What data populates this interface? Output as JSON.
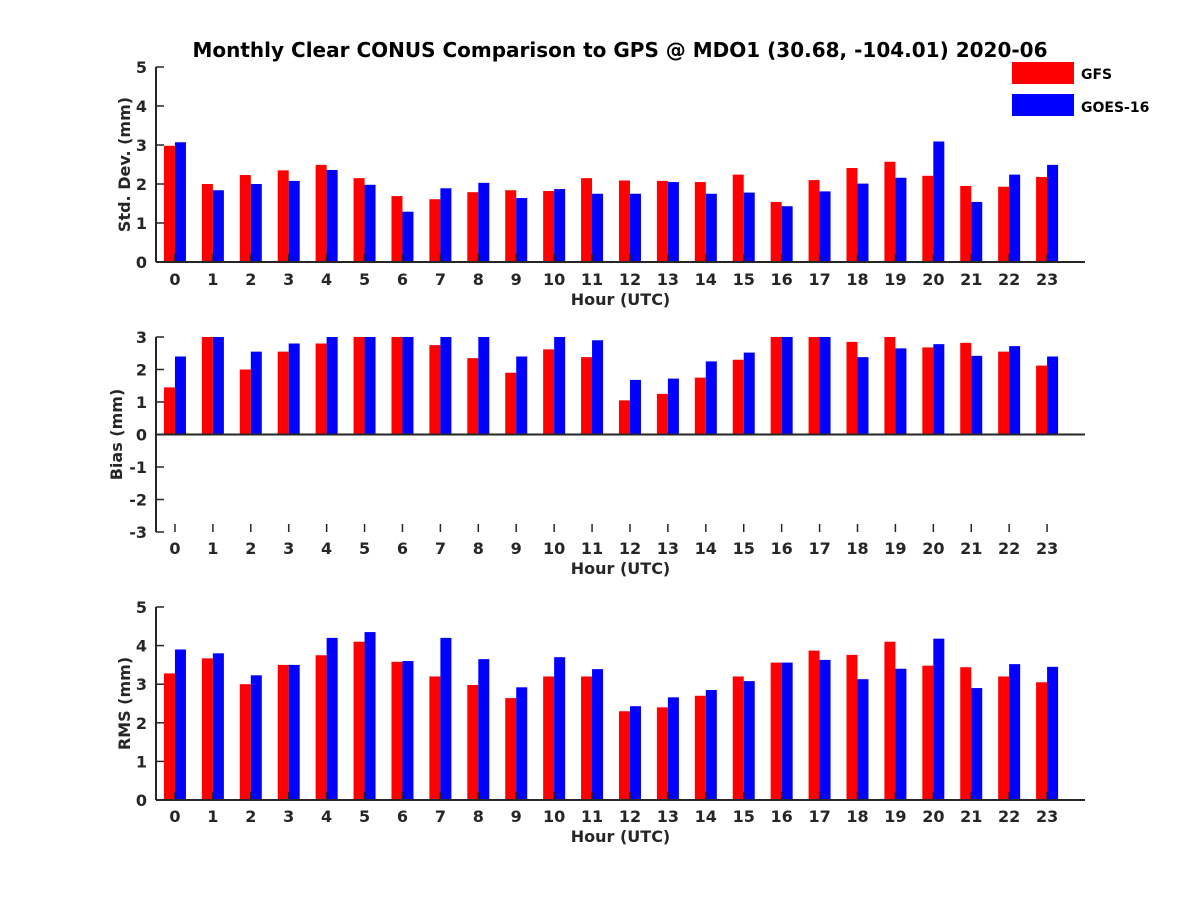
{
  "title": "Monthly Clear CONUS Comparison to GPS @ MDO1 (30.68, -104.01) 2020-06",
  "colors": {
    "GFS": "#ff0000",
    "GOES-16": "#0000ff",
    "axis": "#262626"
  },
  "legend": {
    "position": "top-right",
    "entries": [
      "GFS",
      "GOES-16"
    ]
  },
  "chart_data": [
    {
      "type": "bar",
      "ylabel": "Std. Dev. (mm)",
      "xlabel": "Hour (UTC)",
      "ylim": [
        0,
        5
      ],
      "yticks": [
        0,
        1,
        2,
        3,
        4,
        5
      ],
      "grid": false,
      "categories": [
        "0",
        "1",
        "2",
        "3",
        "4",
        "5",
        "6",
        "7",
        "8",
        "9",
        "10",
        "11",
        "12",
        "13",
        "14",
        "15",
        "16",
        "17",
        "18",
        "19",
        "20",
        "21",
        "22",
        "23"
      ],
      "series": [
        {
          "name": "GFS",
          "values": [
            2.98,
            2.0,
            2.23,
            2.35,
            2.49,
            2.15,
            1.69,
            1.61,
            1.79,
            1.84,
            1.82,
            2.15,
            2.09,
            2.08,
            2.05,
            2.24,
            1.54,
            2.1,
            2.41,
            2.57,
            2.21,
            1.95,
            1.93,
            2.18
          ]
        },
        {
          "name": "GOES-16",
          "values": [
            3.07,
            1.84,
            2.0,
            2.08,
            2.36,
            1.98,
            1.29,
            1.89,
            2.03,
            1.64,
            1.87,
            1.75,
            1.75,
            2.05,
            1.75,
            1.78,
            1.43,
            1.81,
            2.01,
            2.16,
            3.09,
            1.54,
            2.24,
            2.49
          ]
        }
      ]
    },
    {
      "type": "bar",
      "ylabel": "Bias (mm)",
      "xlabel": "Hour (UTC)",
      "ylim": [
        -3,
        3
      ],
      "yticks": [
        -3,
        -2,
        -1,
        0,
        1,
        2,
        3
      ],
      "grid": false,
      "categories": [
        "0",
        "1",
        "2",
        "3",
        "4",
        "5",
        "6",
        "7",
        "8",
        "9",
        "10",
        "11",
        "12",
        "13",
        "14",
        "15",
        "16",
        "17",
        "18",
        "19",
        "20",
        "21",
        "22",
        "23"
      ],
      "series": [
        {
          "name": "GFS",
          "values": [
            1.45,
            3.0,
            2.0,
            2.55,
            2.8,
            3.0,
            3.0,
            2.75,
            2.35,
            1.9,
            2.62,
            2.38,
            1.05,
            1.25,
            1.75,
            2.3,
            3.0,
            3.0,
            2.85,
            3.0,
            2.68,
            2.82,
            2.55,
            2.12
          ]
        },
        {
          "name": "GOES-16",
          "values": [
            2.4,
            3.0,
            2.55,
            2.8,
            3.0,
            3.0,
            3.0,
            3.0,
            3.0,
            2.4,
            3.0,
            2.9,
            1.68,
            1.72,
            2.25,
            2.52,
            3.0,
            3.0,
            2.38,
            2.65,
            2.78,
            2.42,
            2.72,
            2.4
          ]
        }
      ]
    },
    {
      "type": "bar",
      "ylabel": "RMS (mm)",
      "xlabel": "Hour (UTC)",
      "ylim": [
        0,
        5
      ],
      "yticks": [
        0,
        1,
        2,
        3,
        4,
        5
      ],
      "grid": false,
      "categories": [
        "0",
        "1",
        "2",
        "3",
        "4",
        "5",
        "6",
        "7",
        "8",
        "9",
        "10",
        "11",
        "12",
        "13",
        "14",
        "15",
        "16",
        "17",
        "18",
        "19",
        "20",
        "21",
        "22",
        "23"
      ],
      "series": [
        {
          "name": "GFS",
          "values": [
            3.28,
            3.67,
            3.0,
            3.5,
            3.75,
            4.1,
            3.58,
            3.2,
            2.98,
            2.64,
            3.2,
            3.2,
            2.3,
            2.4,
            2.7,
            3.2,
            3.56,
            3.87,
            3.76,
            4.1,
            3.48,
            3.44,
            3.2,
            3.05
          ]
        },
        {
          "name": "GOES-16",
          "values": [
            3.9,
            3.8,
            3.23,
            3.5,
            4.2,
            4.35,
            3.6,
            4.2,
            3.65,
            2.92,
            3.7,
            3.39,
            2.43,
            2.66,
            2.85,
            3.08,
            3.56,
            3.63,
            3.13,
            3.4,
            4.18,
            2.9,
            3.52,
            3.45
          ]
        }
      ]
    }
  ]
}
